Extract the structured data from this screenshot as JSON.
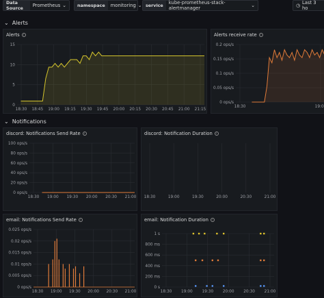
{
  "toolbar": {
    "datasource_label": "Data Source",
    "datasource_value": "Prometheus",
    "namespace_label": "namespace",
    "namespace_value": "monitoring",
    "service_label": "service",
    "service_value": "kube-prometheus-stack-alertmanager",
    "time_range": "Last 3 ho"
  },
  "rows": {
    "alerts": "Alerts",
    "notifications": "Notifications"
  },
  "panels": {
    "alerts": "Alerts",
    "alerts_rate": "Alerts receive rate",
    "discord_rate": "discord: Notifications Send Rate",
    "discord_duration": "discord: Notification Duration",
    "email_rate": "email: Notifications Send Rate",
    "email_duration": "email: Notification Duration"
  },
  "chart_data": [
    {
      "type": "line",
      "title": "Alerts",
      "yticks": [
        "0",
        "5",
        "10",
        "15"
      ],
      "xticks": [
        "18:30",
        "18:45",
        "19:00",
        "19:15",
        "19:30",
        "19:45",
        "20:00",
        "20:15",
        "20:30",
        "20:45",
        "21:00",
        "21:15"
      ],
      "series_color": "#d4c42c",
      "series": [
        {
          "values": [
            1,
            1,
            1,
            1,
            1,
            1,
            1,
            1,
            7,
            10,
            10,
            11,
            10,
            11,
            10,
            11,
            12,
            12,
            12,
            11,
            13,
            13,
            12,
            14,
            13,
            14,
            13,
            13,
            13,
            13,
            13,
            13,
            13,
            13,
            13,
            13,
            13,
            13,
            13,
            13,
            13,
            13,
            13,
            13,
            13,
            13,
            13,
            13,
            13,
            13,
            13,
            13,
            13,
            13,
            13,
            13,
            13,
            13,
            13,
            13
          ]
        }
      ]
    },
    {
      "type": "line",
      "title": "Alerts receive rate",
      "yticks": [
        "0 ops/s",
        "0.05 ops/s",
        "0.1 ops/s",
        "0.15 ops/s",
        "0.2 ops/s"
      ],
      "xticks": [
        "18:30",
        "19:00"
      ],
      "series_color": "#e07b39",
      "series": [
        {
          "values": [
            0,
            0,
            0,
            0,
            0,
            0,
            0.06,
            0.17,
            0.15,
            0.2,
            0.17,
            0.19,
            0.16,
            0.2,
            0.18,
            0.17,
            0.19,
            0.16,
            0.2,
            0.18,
            0.17,
            0.2,
            0.19,
            0.17,
            0.2,
            0.18,
            0.19,
            0.17,
            0.2,
            0.18
          ]
        }
      ]
    },
    {
      "type": "line",
      "title": "discord: Notifications Send Rate",
      "yticks": [
        "0 ops/s",
        "20 ops/s",
        "40 ops/s",
        "60 ops/s",
        "80 ops/s",
        "100 ops/s"
      ],
      "xticks": [
        "18:30",
        "19:00",
        "19:30",
        "20:00",
        "20:30",
        "21:00"
      ],
      "series_color": "#e07b39",
      "series": [
        {
          "values": [
            0,
            0,
            0,
            0,
            0,
            0,
            0,
            0,
            0,
            0,
            0,
            0
          ]
        }
      ]
    },
    {
      "type": "scatter",
      "title": "discord: Notification Duration",
      "yticks": [],
      "xticks": [
        "18:30",
        "19:00",
        "19:30",
        "20:00",
        "20:30",
        "21:00"
      ],
      "series": []
    },
    {
      "type": "bar",
      "title": "email: Notifications Send Rate",
      "yticks": [
        "0 ops/s",
        "0.005 ops/s",
        "0.01 ops/s",
        "0.015 ops/s",
        "0.02 ops/s",
        "0.025 ops/s"
      ],
      "xticks": [
        "18:30",
        "19:00",
        "19:30",
        "20:00",
        "20:30",
        "21:00"
      ],
      "series_color": "#e07b39",
      "values": [
        0,
        0,
        0,
        0,
        0,
        0,
        0.01,
        0.0,
        0.012,
        0.02,
        0.021,
        0.012,
        0.0,
        0.01,
        0.008,
        0.0,
        0.01,
        0.0,
        0.008,
        0.009,
        0.0,
        0.006,
        0.0,
        0.009,
        0.0,
        0,
        0,
        0,
        0,
        0
      ]
    },
    {
      "type": "scatter",
      "title": "email: Notification Duration",
      "yticks": [
        "0 s",
        "200 ms",
        "400 ms",
        "600 ms",
        "800 ms",
        "1 s"
      ],
      "xticks": [
        "18:30",
        "19:00",
        "19:30",
        "20:00",
        "20:30",
        "21:00"
      ],
      "series": [
        {
          "color": "#e0c32c",
          "x": [
            0.28,
            0.33,
            0.38,
            0.49,
            0.55,
            0.88,
            0.91
          ],
          "y": [
            1,
            1,
            1,
            1,
            1,
            1,
            1
          ]
        },
        {
          "color": "#e07b39",
          "x": [
            0.3,
            0.36,
            0.45,
            0.5,
            0.88,
            0.91
          ],
          "y": [
            0.5,
            0.5,
            0.5,
            0.5,
            0.5,
            0.5
          ]
        },
        {
          "color": "#5794f2",
          "x": [
            0.3,
            0.4,
            0.45,
            0.55,
            0.88,
            0.91
          ],
          "y": [
            0.02,
            0.02,
            0.02,
            0.02,
            0.02,
            0.02
          ]
        }
      ]
    }
  ]
}
